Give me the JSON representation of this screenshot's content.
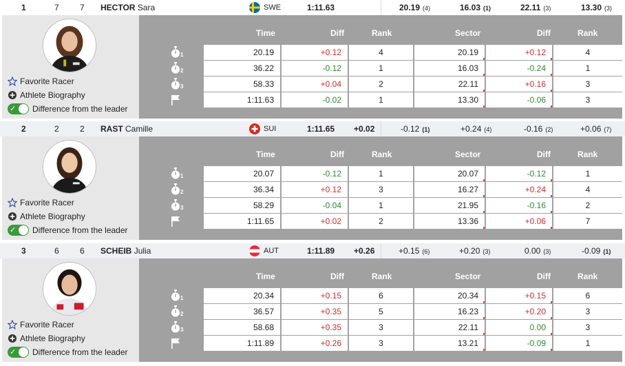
{
  "labels": {
    "favorite": "Favorite Racer",
    "biography": "Athlete Biography",
    "difference": "Difference from the leader",
    "col_time": "Time",
    "col_diff": "Diff",
    "col_rank": "Rank",
    "col_sector": "Sector",
    "col_sector_diff": "Diff",
    "col_sector_rank": "Rank"
  },
  "icons": {
    "split": "stopwatch-icon",
    "finish": "flag-icon",
    "favorite": "star-outline-icon",
    "biography": "plus-circle-icon",
    "toggle": "toggle-on-icon"
  },
  "colors": {
    "positive": "#d42a2a",
    "negative": "#2a8a2a",
    "toggle_on": "#3a9a3a"
  },
  "racers": [
    {
      "rank": "1",
      "bib": "7",
      "start": "7",
      "last_name": "HECTOR",
      "first_name": "Sara",
      "country": "SWE",
      "total_time": "1:11.63",
      "total_diff": "",
      "summary": [
        {
          "value": "20.19",
          "rank": "(4)"
        },
        {
          "value": "16.03",
          "rank": "(1)"
        },
        {
          "value": "22.11",
          "rank": "(3)"
        },
        {
          "value": "13.30",
          "rank": "(3)"
        }
      ],
      "splits": [
        {
          "time": "20.19",
          "diff": "+0.12",
          "rank": "4",
          "sector": "20.19",
          "sdiff": "+0.12",
          "srank": "4"
        },
        {
          "time": "36.22",
          "diff": "-0.12",
          "rank": "1",
          "sector": "16.03",
          "sdiff": "-0.24",
          "srank": "1"
        },
        {
          "time": "58.33",
          "diff": "+0.04",
          "rank": "2",
          "sector": "22.11",
          "sdiff": "+0.16",
          "srank": "3"
        },
        {
          "time": "1:11.63",
          "diff": "-0.02",
          "rank": "1",
          "sector": "13.30",
          "sdiff": "-0.06",
          "srank": "3"
        }
      ]
    },
    {
      "rank": "2",
      "bib": "2",
      "start": "2",
      "last_name": "RAST",
      "first_name": "Camille",
      "country": "SUI",
      "total_time": "1:11.65",
      "total_diff": "+0.02",
      "summary": [
        {
          "value": "-0.12",
          "rank": "(1)"
        },
        {
          "value": "+0.24",
          "rank": "(4)"
        },
        {
          "value": "-0.16",
          "rank": "(2)"
        },
        {
          "value": "+0.06",
          "rank": "(7)"
        }
      ],
      "splits": [
        {
          "time": "20.07",
          "diff": "-0.12",
          "rank": "1",
          "sector": "20.07",
          "sdiff": "-0.12",
          "srank": "1"
        },
        {
          "time": "36.34",
          "diff": "+0.12",
          "rank": "3",
          "sector": "16.27",
          "sdiff": "+0.24",
          "srank": "4"
        },
        {
          "time": "58.29",
          "diff": "-0.04",
          "rank": "1",
          "sector": "21.95",
          "sdiff": "-0.16",
          "srank": "2"
        },
        {
          "time": "1:11.65",
          "diff": "+0.02",
          "rank": "2",
          "sector": "13.36",
          "sdiff": "+0.06",
          "srank": "7"
        }
      ]
    },
    {
      "rank": "3",
      "bib": "6",
      "start": "6",
      "last_name": "SCHEIB",
      "first_name": "Julia",
      "country": "AUT",
      "total_time": "1:11.89",
      "total_diff": "+0.26",
      "summary": [
        {
          "value": "+0.15",
          "rank": "(6)"
        },
        {
          "value": "+0.20",
          "rank": "(3)"
        },
        {
          "value": "0.00",
          "rank": "(3)"
        },
        {
          "value": "-0.09",
          "rank": "(1)"
        }
      ],
      "splits": [
        {
          "time": "20.34",
          "diff": "+0.15",
          "rank": "6",
          "sector": "20.34",
          "sdiff": "+0.15",
          "srank": "6"
        },
        {
          "time": "36.57",
          "diff": "+0.35",
          "rank": "5",
          "sector": "16.23",
          "sdiff": "+0.20",
          "srank": "3"
        },
        {
          "time": "58.68",
          "diff": "+0.35",
          "rank": "3",
          "sector": "22.11",
          "sdiff": "0.00",
          "srank": "3"
        },
        {
          "time": "1:11.89",
          "diff": "+0.26",
          "rank": "3",
          "sector": "13.21",
          "sdiff": "-0.09",
          "srank": "1"
        }
      ]
    }
  ]
}
